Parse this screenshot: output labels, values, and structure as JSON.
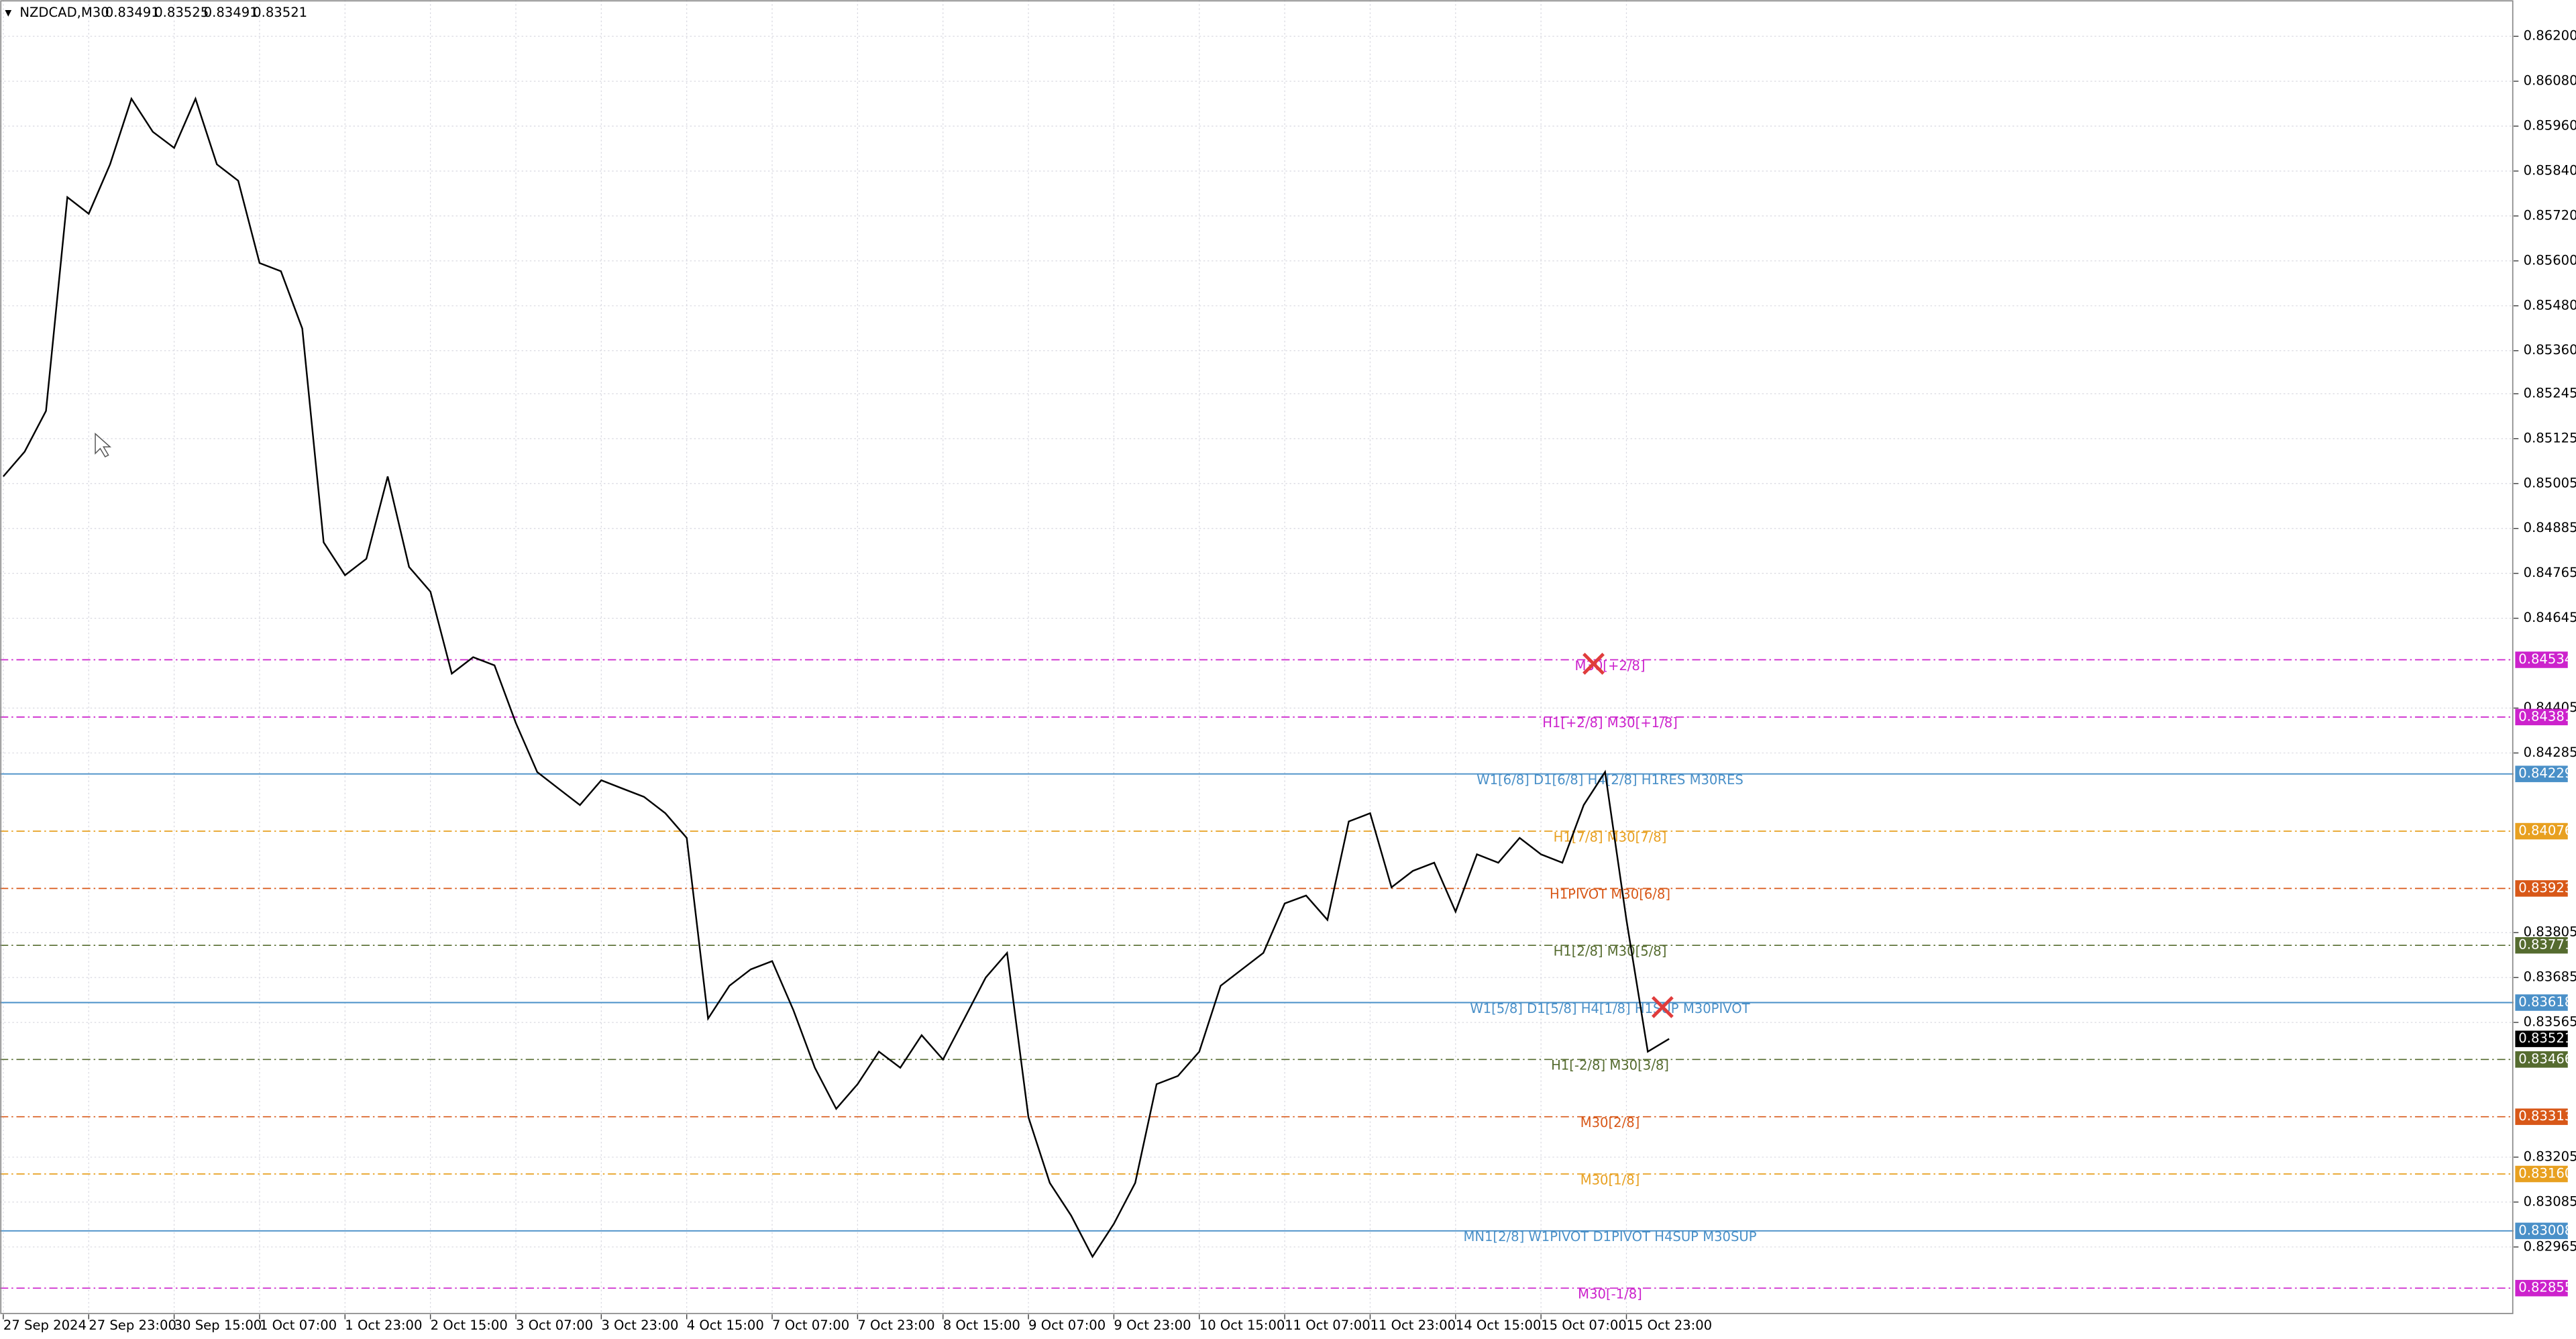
{
  "chart_data": {
    "type": "line",
    "title": "NZDCAD,M30",
    "ohlc": [
      0.83491,
      0.83525,
      0.83491,
      0.83521
    ],
    "categories": [
      "27 Sep 2024",
      null,
      null,
      null,
      "27 Sep 23:00",
      null,
      null,
      null,
      "30 Sep 15:00",
      null,
      null,
      null,
      "1 Oct 07:00",
      null,
      null,
      null,
      "1 Oct 23:00",
      null,
      null,
      null,
      "2 Oct 15:00",
      null,
      null,
      null,
      "3 Oct 07:00",
      null,
      null,
      null,
      "3 Oct 23:00",
      null,
      null,
      null,
      "4 Oct 15:00",
      null,
      null,
      null,
      "7 Oct 07:00",
      null,
      null,
      null,
      "7 Oct 23:00",
      null,
      null,
      null,
      "8 Oct 15:00",
      null,
      null,
      null,
      "9 Oct 07:00",
      null,
      null,
      null,
      "9 Oct 23:00",
      null,
      null,
      null,
      "10 Oct 15:00",
      null,
      null,
      null,
      "11 Oct 07:00",
      null,
      null,
      null,
      "11 Oct 23:00",
      null,
      null,
      null,
      "14 Oct 15:00",
      null,
      null,
      null,
      "15 Oct 07:00",
      null,
      null,
      null,
      "15 Oct 23:00",
      null,
      null
    ],
    "series": [
      {
        "name": "NZDCAD",
        "color": "#000000",
        "values": [
          0.85024,
          0.8509,
          0.85199,
          0.8577,
          0.85726,
          0.85858,
          0.86033,
          0.85945,
          0.85902,
          0.86033,
          0.85858,
          0.85814,
          0.85594,
          0.85572,
          0.85419,
          0.84848,
          0.8476,
          0.84804,
          0.85024,
          0.84782,
          0.84716,
          0.84497,
          0.84541,
          0.84519,
          0.84365,
          0.84234,
          0.8419,
          0.84146,
          0.84212,
          0.8419,
          0.84168,
          0.84124,
          0.84058,
          0.83575,
          0.83663,
          0.83707,
          0.83729,
          0.83597,
          0.83444,
          0.83334,
          0.834,
          0.83487,
          0.83444,
          0.83531,
          0.83466,
          0.83575,
          0.83685,
          0.83751,
          0.83312,
          0.83136,
          0.83049,
          0.82939,
          0.83027,
          0.83136,
          0.834,
          0.83422,
          0.83487,
          0.83663,
          0.83707,
          0.83751,
          0.83883,
          0.83904,
          0.83839,
          0.84102,
          0.84124,
          0.83926,
          0.8397,
          0.83992,
          0.83861,
          0.84014,
          0.83992,
          0.84058,
          0.84014,
          0.83992,
          0.84146,
          0.84234,
          0.83839,
          0.83487,
          0.83521
        ]
      }
    ],
    "ylim": [
      0.82785,
      0.86297
    ],
    "yticks": [
      {
        "value": 0.862,
        "label": "0.86200"
      },
      {
        "value": 0.8608,
        "label": "0.86080"
      },
      {
        "value": 0.8596,
        "label": "0.85960"
      },
      {
        "value": 0.8584,
        "label": "0.85840"
      },
      {
        "value": 0.8572,
        "label": "0.85720"
      },
      {
        "value": 0.856,
        "label": "0.85600"
      },
      {
        "value": 0.8548,
        "label": "0.85480"
      },
      {
        "value": 0.8536,
        "label": "0.85360"
      },
      0.85245,
      0.85125,
      {
        "value": 0.85005,
        "label": "0.85005"
      },
      0.84885,
      0.84765,
      0.84645,
      0.84405,
      0.84285,
      0.83805,
      0.83685,
      0.83565,
      0.83205,
      0.83085,
      0.82965
    ],
    "grid": true,
    "current_price": {
      "value": 0.83521,
      "color": "#000000"
    },
    "levels": [
      {
        "name": "M30[+2/8]",
        "value": 0.84534,
        "color": "#cc22cc",
        "solid": false
      },
      {
        "name": "H1[+2/8] M30[+1/8]",
        "value": 0.84381,
        "color": "#cc22cc",
        "solid": false
      },
      {
        "name": "W1[6/8] D1[6/8] H4[2/8] H1RES M30RES",
        "value": 0.84229,
        "color": "#4a90c8",
        "solid": true
      },
      {
        "name": "H1[7/8] M30[7/8]",
        "value": 0.84076,
        "color": "#e8a020",
        "solid": false
      },
      {
        "name": "H1PIVOT M30[6/8]",
        "value": 0.83923,
        "color": "#d85818",
        "solid": false
      },
      {
        "name": "H1[2/8] M30[5/8]",
        "value": 0.83771,
        "color": "#556b2f",
        "solid": false
      },
      {
        "name": "W1[5/8] D1[5/8] H4[1/8] H1SUP M30PIVOT",
        "value": 0.83618,
        "color": "#4a90c8",
        "solid": true
      },
      {
        "name": "H1[-2/8] M30[3/8]",
        "value": 0.83466,
        "color": "#556b2f",
        "solid": false
      },
      {
        "name": "M30[2/8]",
        "value": 0.83313,
        "color": "#d85818",
        "solid": false
      },
      {
        "name": "M30[1/8]",
        "value": {
          "value": 0.8316,
          "label": "0.83160"
        },
        "color": "#e8a020",
        "solid": false
      },
      {
        "name": "MN1[2/8] W1PIVOT D1PIVOT H4SUP M30SUP",
        "value": 0.83008,
        "color": "#4a90c8",
        "solid": true
      },
      {
        "name": "M30[-1/8]",
        "value": 0.82855,
        "color": "#cc22cc",
        "solid": false
      }
    ]
  }
}
